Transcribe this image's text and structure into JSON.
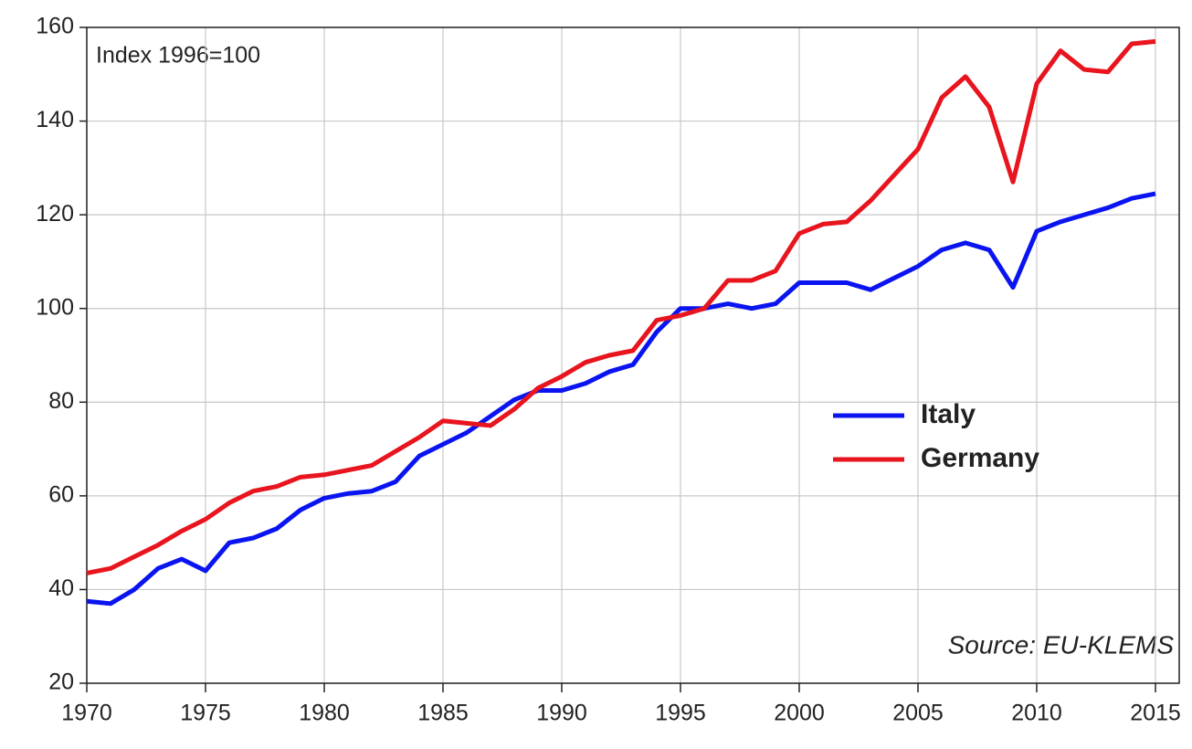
{
  "chart_data": {
    "type": "line",
    "annotations": [
      "Index 1996=100",
      "Source: EU-KLEMS"
    ],
    "x": [
      1970,
      1971,
      1972,
      1973,
      1974,
      1975,
      1976,
      1977,
      1978,
      1979,
      1980,
      1981,
      1982,
      1983,
      1984,
      1985,
      1986,
      1987,
      1988,
      1989,
      1990,
      1991,
      1992,
      1993,
      1994,
      1995,
      1996,
      1997,
      1998,
      1999,
      2000,
      2001,
      2002,
      2003,
      2004,
      2005,
      2006,
      2007,
      2008,
      2009,
      2010,
      2011,
      2012,
      2013,
      2014,
      2015
    ],
    "series": [
      {
        "name": "Italy",
        "color": "#0a14f0",
        "values": [
          37.5,
          37,
          40,
          44.5,
          46.5,
          44,
          50,
          51,
          53,
          57,
          59.5,
          60.5,
          61,
          63,
          68.5,
          71,
          73.5,
          77,
          80.5,
          82.5,
          82.5,
          84,
          86.5,
          88,
          95,
          100,
          100,
          101,
          100,
          101,
          105.5,
          105.5,
          105.5,
          104,
          106.5,
          109,
          112.5,
          114,
          112.5,
          104.5,
          116.5,
          118.5,
          120,
          121.5,
          123.5,
          124.5
        ]
      },
      {
        "name": "Germany",
        "color": "#e8141e",
        "values": [
          43.5,
          44.5,
          47,
          49.5,
          52.5,
          55,
          58.5,
          61,
          62,
          64,
          64.5,
          65.5,
          66.5,
          69.5,
          72.5,
          76,
          75.5,
          75,
          78.5,
          83,
          85.5,
          88.5,
          90,
          91,
          97.5,
          98.5,
          100,
          106,
          106,
          108,
          116,
          118,
          118.5,
          123,
          128.5,
          134,
          145,
          149.5,
          143,
          127,
          148,
          155,
          151,
          150.5,
          156.5,
          157
        ]
      }
    ],
    "xlim": [
      1970,
      2016
    ],
    "xticks": [
      1970,
      1975,
      1980,
      1985,
      1990,
      1995,
      2000,
      2005,
      2010,
      2015
    ],
    "ylim": [
      20,
      160
    ],
    "yticks": [
      20,
      40,
      60,
      80,
      100,
      120,
      140,
      160
    ],
    "grid": true,
    "legend": "right"
  }
}
